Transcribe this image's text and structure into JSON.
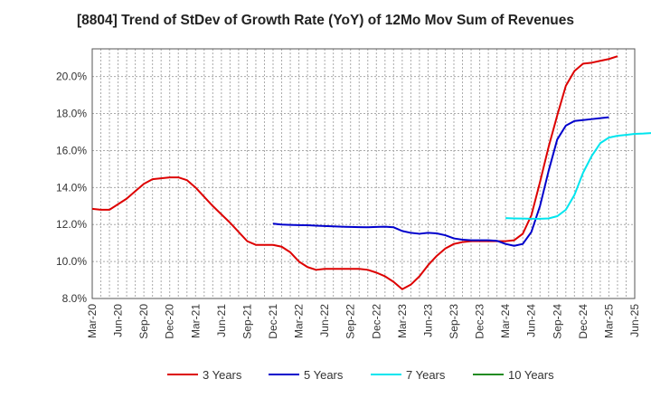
{
  "chart_data": {
    "type": "line",
    "title": "[8804]  Trend of StDev of Growth Rate (YoY) of 12Mo Mov Sum of Revenues",
    "xlabel": "",
    "ylabel": "",
    "ylim": [
      8.0,
      21.5
    ],
    "y_ticks": [
      8.0,
      10.0,
      12.0,
      14.0,
      16.0,
      18.0,
      20.0
    ],
    "y_tick_labels": [
      "8.0%",
      "10.0%",
      "12.0%",
      "14.0%",
      "16.0%",
      "18.0%",
      "20.0%"
    ],
    "x_tick_labels": [
      "Mar-20",
      "Jun-20",
      "Sep-20",
      "Dec-20",
      "Mar-21",
      "Jun-21",
      "Sep-21",
      "Dec-21",
      "Mar-22",
      "Jun-22",
      "Sep-22",
      "Dec-22",
      "Mar-23",
      "Jun-23",
      "Sep-23",
      "Dec-23",
      "Mar-24",
      "Jun-24",
      "Sep-24",
      "Dec-24",
      "Mar-25",
      "Jun-25"
    ],
    "grid": true,
    "legend_position": "bottom",
    "series": [
      {
        "name": "3 Years",
        "color": "#dd0000",
        "start_index": 0,
        "values": [
          12.85,
          12.8,
          12.8,
          13.1,
          13.4,
          13.8,
          14.2,
          14.45,
          14.5,
          14.55,
          14.55,
          14.4,
          14.0,
          13.5,
          13.0,
          12.55,
          12.1,
          11.6,
          11.1,
          10.9,
          10.9,
          10.9,
          10.8,
          10.5,
          10.0,
          9.7,
          9.55,
          9.6,
          9.6,
          9.6,
          9.6,
          9.6,
          9.55,
          9.4,
          9.2,
          8.9,
          8.5,
          8.75,
          9.2,
          9.8,
          10.3,
          10.7,
          10.95,
          11.05,
          11.1,
          11.1,
          11.1,
          11.1,
          11.1,
          11.15,
          11.5,
          12.5,
          14.3,
          16.2,
          17.9,
          19.5,
          20.3,
          20.7,
          20.75,
          20.85,
          20.95,
          21.1
        ]
      },
      {
        "name": "5 Years",
        "color": "#0000cc",
        "start_index": 21,
        "values": [
          12.05,
          12.0,
          11.98,
          11.97,
          11.96,
          11.94,
          11.92,
          11.9,
          11.88,
          11.87,
          11.86,
          11.85,
          11.87,
          11.88,
          11.85,
          11.65,
          11.55,
          11.5,
          11.55,
          11.52,
          11.42,
          11.25,
          11.18,
          11.15,
          11.15,
          11.15,
          11.12,
          10.95,
          10.85,
          10.95,
          11.6,
          13.0,
          14.9,
          16.6,
          17.35,
          17.6,
          17.65,
          17.7,
          17.75,
          17.8
        ]
      },
      {
        "name": "7 Years",
        "color": "#00e5ee",
        "start_index": 48,
        "values": [
          12.35,
          12.33,
          12.32,
          12.31,
          12.31,
          12.33,
          12.45,
          12.8,
          13.6,
          14.8,
          15.7,
          16.4,
          16.7,
          16.8,
          16.85,
          16.9,
          16.92,
          16.95
        ]
      },
      {
        "name": "10 Years",
        "color": "#228b22",
        "start_index": 0,
        "values": []
      }
    ]
  }
}
